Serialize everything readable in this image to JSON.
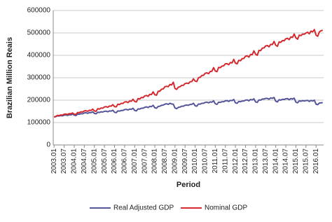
{
  "chart_data": {
    "type": "line",
    "y_label": "Brazilian Million Reais",
    "x_label": "Period",
    "categories": [
      "2003.01",
      null,
      null,
      null,
      null,
      null,
      "2003.07",
      null,
      null,
      null,
      null,
      null,
      "2004.01",
      null,
      null,
      null,
      null,
      null,
      "2004.07",
      null,
      null,
      null,
      null,
      null,
      "2005.01",
      null,
      null,
      null,
      null,
      null,
      "2005.07",
      null,
      null,
      null,
      null,
      null,
      "2006.01",
      null,
      null,
      null,
      null,
      null,
      "2006.07",
      null,
      null,
      null,
      null,
      null,
      "2007.01",
      null,
      null,
      null,
      null,
      null,
      "2007.07",
      null,
      null,
      null,
      null,
      null,
      "2008.01",
      null,
      null,
      null,
      null,
      null,
      "2008.07",
      null,
      null,
      null,
      null,
      null,
      "2009.01",
      null,
      null,
      null,
      null,
      null,
      "2009.07",
      null,
      null,
      null,
      null,
      null,
      "2010.01",
      null,
      null,
      null,
      null,
      null,
      "2010.07",
      null,
      null,
      null,
      null,
      null,
      "2011.01",
      null,
      null,
      null,
      null,
      null,
      "2011.07",
      null,
      null,
      null,
      null,
      null,
      "2012.01",
      null,
      null,
      null,
      null,
      null,
      "2012.07",
      null,
      null,
      null,
      null,
      null,
      "2013.01",
      null,
      null,
      null,
      null,
      null,
      "2013.07",
      null,
      null,
      null,
      null,
      null,
      "2014.01",
      null,
      null,
      null,
      null,
      null,
      "2014.07",
      null,
      null,
      null,
      null,
      null,
      "2015.01",
      null,
      null,
      null,
      null,
      null,
      "2015.07",
      null,
      null,
      null,
      null,
      null,
      "2016.01",
      null,
      null,
      null,
      null
    ],
    "series": [
      {
        "name": "Real Adjusted GDP",
        "color": "#55559a",
        "values": [
          125000,
          126000,
          130000,
          129000,
          131000,
          130000,
          133000,
          134000,
          132000,
          135000,
          134000,
          138000,
          133000,
          131000,
          138000,
          137000,
          140000,
          139000,
          143000,
          144000,
          141000,
          145000,
          144000,
          148000,
          141000,
          139000,
          146000,
          145000,
          148000,
          147000,
          150000,
          151000,
          148000,
          152000,
          151000,
          155000,
          146000,
          144000,
          152000,
          151000,
          154000,
          154000,
          158000,
          159000,
          156000,
          160000,
          159000,
          164000,
          154000,
          152000,
          161000,
          160000,
          164000,
          164000,
          168000,
          170000,
          167000,
          172000,
          171000,
          177000,
          166000,
          164000,
          172000,
          173000,
          177000,
          178000,
          182000,
          184000,
          181000,
          186000,
          183000,
          182000,
          165000,
          162000,
          168000,
          169000,
          173000,
          173000,
          177000,
          178000,
          177000,
          181000,
          181000,
          186000,
          175000,
          173000,
          183000,
          182000,
          186000,
          186000,
          190000,
          191000,
          188000,
          192000,
          191000,
          197000,
          184000,
          181000,
          191000,
          190000,
          193000,
          193000,
          197000,
          198000,
          194000,
          199000,
          198000,
          203000,
          188000,
          186000,
          194000,
          193000,
          196000,
          196000,
          200000,
          201000,
          197000,
          203000,
          201000,
          206000,
          192000,
          190000,
          201000,
          200000,
          205000,
          205000,
          208000,
          208000,
          204000,
          210000,
          208000,
          212000,
          195000,
          192000,
          202000,
          200000,
          204000,
          203000,
          206000,
          207000,
          202000,
          207000,
          205000,
          209000,
          191000,
          188000,
          197000,
          195000,
          198000,
          196000,
          198000,
          199000,
          194000,
          199000,
          196000,
          200000,
          182000,
          180000,
          187000,
          188000,
          189000
        ]
      },
      {
        "name": "Nominal GDP",
        "color": "#d42a2f",
        "values": [
          125000,
          127000,
          132000,
          131000,
          134000,
          133000,
          137000,
          138000,
          136000,
          140000,
          139000,
          143000,
          137000,
          136000,
          145000,
          144000,
          148000,
          147000,
          152000,
          153000,
          150000,
          155000,
          154000,
          160000,
          152000,
          150000,
          162000,
          160000,
          165000,
          164000,
          170000,
          171000,
          168000,
          174000,
          173000,
          180000,
          171000,
          170000,
          182000,
          180000,
          186000,
          185000,
          192000,
          193000,
          189000,
          196000,
          195000,
          204000,
          194000,
          192000,
          207000,
          205000,
          212000,
          211000,
          219000,
          221000,
          217000,
          226000,
          225000,
          237000,
          224000,
          222000,
          240000,
          240000,
          249000,
          250000,
          260000,
          262000,
          260000,
          270000,
          268000,
          280000,
          252000,
          248000,
          258000,
          260000,
          266000,
          266000,
          274000,
          276000,
          274000,
          282000,
          283000,
          295000,
          285000,
          283000,
          300000,
          302000,
          310000,
          311000,
          320000,
          322000,
          318000,
          328000,
          329000,
          345000,
          330000,
          327000,
          346000,
          345000,
          352000,
          353000,
          362000,
          363000,
          358000,
          368000,
          366000,
          382000,
          365000,
          362000,
          378000,
          376000,
          385000,
          386000,
          396000,
          398000,
          392000,
          404000,
          403000,
          420000,
          405000,
          400000,
          422000,
          421000,
          432000,
          433000,
          442000,
          444000,
          438000,
          449000,
          448000,
          462000,
          445000,
          440000,
          460000,
          458000,
          466000,
          465000,
          474000,
          476000,
          470000,
          482000,
          480000,
          495000,
          478000,
          472000,
          490000,
          488000,
          495000,
          494000,
          500000,
          503000,
          496000,
          508000,
          505000,
          515000,
          490000,
          485000,
          505000,
          510000,
          512000
        ]
      }
    ],
    "ylim": [
      0,
      600000
    ],
    "yticks": [
      0,
      100000,
      200000,
      300000,
      400000,
      500000,
      600000
    ],
    "grid": true,
    "legend": "bottom"
  }
}
